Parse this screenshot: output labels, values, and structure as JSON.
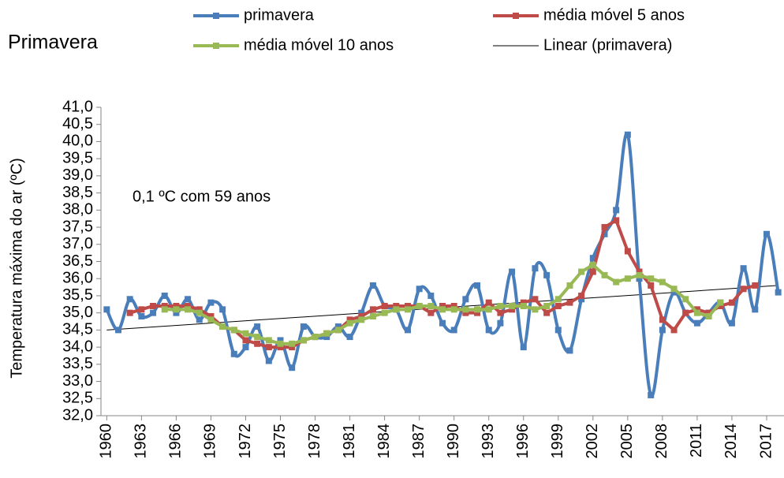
{
  "chart_data": {
    "type": "line",
    "title": "Primavera",
    "y_label": "Temperatura máxima do ar (ºC)",
    "annotation": "0,1 ºC com 59 anos",
    "x": [
      1960,
      1961,
      1962,
      1963,
      1964,
      1965,
      1966,
      1967,
      1968,
      1969,
      1970,
      1971,
      1972,
      1973,
      1974,
      1975,
      1976,
      1977,
      1978,
      1979,
      1980,
      1981,
      1982,
      1983,
      1984,
      1985,
      1986,
      1987,
      1988,
      1989,
      1990,
      1991,
      1992,
      1993,
      1994,
      1995,
      1996,
      1997,
      1998,
      1999,
      2000,
      2001,
      2002,
      2003,
      2004,
      2005,
      2006,
      2007,
      2008,
      2009,
      2010,
      2011,
      2012,
      2013,
      2014,
      2015,
      2016,
      2017,
      2018
    ],
    "xlim": [
      1959.5,
      2018.5
    ],
    "xticks": [
      1960,
      1963,
      1966,
      1969,
      1972,
      1975,
      1978,
      1981,
      1984,
      1987,
      1990,
      1993,
      1996,
      1999,
      2002,
      2005,
      2008,
      2011,
      2014,
      2017
    ],
    "ylim": [
      32,
      41
    ],
    "yticks": [
      {
        "value": 32,
        "label": "32,0"
      },
      {
        "value": 32.5,
        "label": "32,5"
      },
      {
        "value": 33,
        "label": "33,0"
      },
      {
        "value": 33.5,
        "label": "33,5"
      },
      {
        "value": 34,
        "label": "34,0"
      },
      {
        "value": 34.5,
        "label": "34,5"
      },
      {
        "value": 35,
        "label": "35,0"
      },
      {
        "value": 35.5,
        "label": "35,5"
      },
      {
        "value": 36,
        "label": "36,0"
      },
      {
        "value": 36.5,
        "label": "36,5"
      },
      {
        "value": 37,
        "label": "37,0"
      },
      {
        "value": 37.5,
        "label": "37,5"
      },
      {
        "value": 38,
        "label": "38,0"
      },
      {
        "value": 38.5,
        "label": "38,5"
      },
      {
        "value": 39,
        "label": "39,0"
      },
      {
        "value": 39.5,
        "label": "39,5"
      },
      {
        "value": 40,
        "label": "40,0"
      },
      {
        "value": 40.5,
        "label": "40,5"
      },
      {
        "value": 41,
        "label": "41,0"
      }
    ],
    "grid": false,
    "series": [
      {
        "name": "primavera",
        "color": "#4a7ebb",
        "smooth": true,
        "values": [
          35.1,
          34.5,
          35.4,
          34.9,
          35.0,
          35.5,
          35.0,
          35.4,
          34.8,
          35.3,
          35.1,
          33.8,
          34.0,
          34.6,
          33.6,
          34.2,
          33.4,
          34.6,
          34.3,
          34.3,
          34.6,
          34.3,
          35.0,
          35.8,
          35.2,
          35.1,
          34.5,
          35.7,
          35.5,
          34.7,
          34.5,
          35.4,
          35.8,
          34.5,
          34.7,
          36.2,
          34.0,
          36.3,
          36.1,
          34.5,
          33.9,
          35.4,
          36.6,
          37.3,
          38.0,
          40.2,
          36.0,
          32.6,
          34.5,
          35.6,
          35.0,
          34.7,
          35.0,
          35.3,
          34.7,
          36.3,
          35.1,
          37.3,
          35.6
        ]
      },
      {
        "name": "média móvel 5 anos",
        "color": "#be4b48",
        "smooth": false,
        "values": [
          null,
          null,
          35.0,
          35.1,
          35.2,
          35.2,
          35.2,
          35.2,
          35.1,
          34.9,
          34.6,
          34.5,
          34.2,
          34.1,
          34.0,
          34.0,
          34.0,
          34.2,
          34.3,
          34.4,
          34.5,
          34.8,
          34.9,
          35.1,
          35.2,
          35.2,
          35.2,
          35.2,
          35.0,
          35.2,
          35.2,
          35.0,
          35.0,
          35.3,
          35.0,
          35.1,
          35.3,
          35.4,
          35.0,
          35.2,
          35.3,
          35.5,
          36.2,
          37.5,
          37.7,
          36.8,
          36.2,
          35.8,
          34.8,
          34.5,
          35.0,
          35.1,
          35.0,
          35.2,
          35.3,
          35.7,
          35.8,
          null,
          null
        ]
      },
      {
        "name": "média móvel 10 anos",
        "color": "#98b954",
        "smooth": false,
        "values": [
          null,
          null,
          null,
          null,
          null,
          35.1,
          35.1,
          35.1,
          35.0,
          34.8,
          34.6,
          34.5,
          34.4,
          34.3,
          34.2,
          34.1,
          34.1,
          34.2,
          34.3,
          34.4,
          34.5,
          34.7,
          34.8,
          34.9,
          35.0,
          35.1,
          35.1,
          35.2,
          35.2,
          35.1,
          35.1,
          35.1,
          35.1,
          35.1,
          35.2,
          35.2,
          35.2,
          35.1,
          35.2,
          35.4,
          35.8,
          36.2,
          36.4,
          36.1,
          35.9,
          36.0,
          36.1,
          36.0,
          35.9,
          35.7,
          35.4,
          35.0,
          34.9,
          35.3,
          null,
          null,
          null,
          null,
          null
        ]
      }
    ],
    "trendline": {
      "name": "Linear (primavera)",
      "color": "#000000",
      "x": [
        1960,
        2018
      ],
      "values": [
        34.5,
        35.8
      ]
    }
  }
}
